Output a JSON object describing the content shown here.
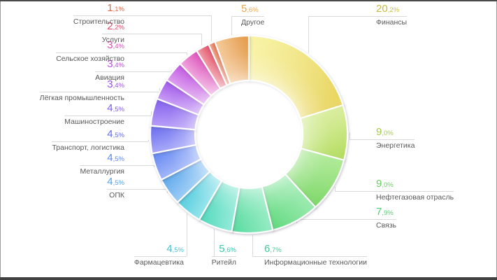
{
  "chart_data": {
    "type": "pie",
    "subtype": "donut",
    "unit": "%",
    "direction": "clockwise",
    "start_angle_deg": 0,
    "legend_position": "callouts",
    "background": "#ffffff",
    "callout_line_color": "#d9d9d9",
    "category_label_color": "#58595b",
    "items": [
      {
        "label": "Финансы",
        "value": 20.2,
        "percent": "20,2%",
        "color": "#e9d55f",
        "color_light": "#f7f1a0",
        "text_color": "#c6bc41"
      },
      {
        "label": "Энергетика",
        "value": 9.0,
        "percent": "9,0%",
        "color": "#b4dd60",
        "color_light": "#d6ec96",
        "text_color": "#a3cc43"
      },
      {
        "label": "Нефтегазовая отрасль",
        "value": 9.0,
        "percent": "9,0%",
        "color": "#7ed869",
        "color_light": "#a8e88e",
        "text_color": "#67d05c"
      },
      {
        "label": "Связь",
        "value": 7.9,
        "percent": "7,9%",
        "color": "#62da7f",
        "color_light": "#92e8a8",
        "text_color": "#4dd26f"
      },
      {
        "label": "Информационные технологии",
        "value": 6.7,
        "percent": "6,7%",
        "color": "#58dba0",
        "color_light": "#8ce9bd",
        "text_color": "#41ca96"
      },
      {
        "label": "Ритейл",
        "value": 5.6,
        "percent": "5,6%",
        "color": "#53d9bd",
        "color_light": "#88e8d4",
        "text_color": "#3dc9ae"
      },
      {
        "label": "Фармацевтика",
        "value": 4.5,
        "percent": "4,5%",
        "color": "#55cddd",
        "color_light": "#8ae1ea",
        "text_color": "#47c1d4"
      },
      {
        "label": "ОПК",
        "value": 4.5,
        "percent": "4,5%",
        "color": "#5fa9ec",
        "color_light": "#93c7f5",
        "text_color": "#57a3ea"
      },
      {
        "label": "Металлургия",
        "value": 4.5,
        "percent": "4,5%",
        "color": "#6488f2",
        "color_light": "#99b0f8",
        "text_color": "#5f88f0"
      },
      {
        "label": "Транспорт, логистика",
        "value": 4.5,
        "percent": "4,5%",
        "color": "#6a6df0",
        "color_light": "#9e9ff7",
        "text_color": "#666cf0"
      },
      {
        "label": "Машиностроение",
        "value": 4.5,
        "percent": "4,5%",
        "color": "#8560ee",
        "color_light": "#af93f6",
        "text_color": "#7f5cee"
      },
      {
        "label": "Лёгкая промышленность",
        "value": 3.4,
        "percent": "3,4%",
        "color": "#a058ea",
        "color_light": "#c493f4",
        "text_color": "#9b51e8"
      },
      {
        "label": "Авиация",
        "value": 3.4,
        "percent": "3,4%",
        "color": "#c158e0",
        "color_light": "#da95ef",
        "text_color": "#bc50dd"
      },
      {
        "label": "Сельское хозяйство",
        "value": 3.4,
        "percent": "3,4%",
        "color": "#dd55bb",
        "color_light": "#ef9cda",
        "text_color": "#dc4fb6"
      },
      {
        "label": "Услуги",
        "value": 2.2,
        "percent": "2,2%",
        "color": "#e05168",
        "color_light": "#f0929f",
        "text_color": "#e04a6a"
      },
      {
        "label": "Строительство",
        "value": 1.1,
        "percent": "1,1%",
        "color": "#df6f4c",
        "color_light": "#f0a287",
        "text_color": "#e06a48"
      },
      {
        "label": "Другое",
        "value": 5.6,
        "percent": "5,6%",
        "color": "#e49b4b",
        "color_light": "#f3c48f",
        "text_color": "#e8a44e"
      }
    ]
  }
}
